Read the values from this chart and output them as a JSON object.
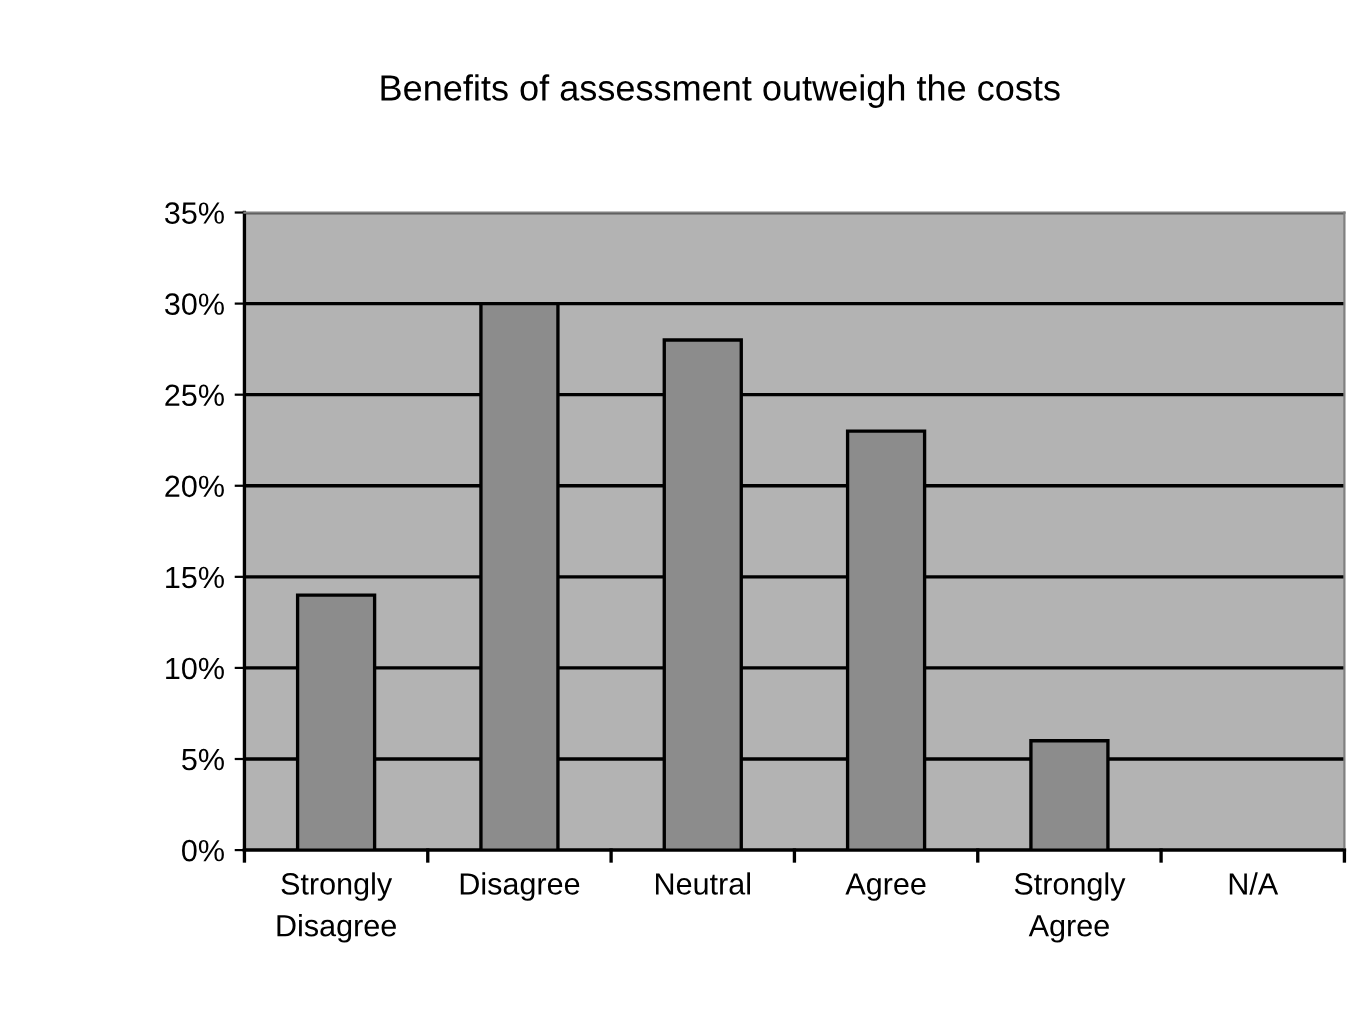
{
  "chart_data": {
    "type": "bar",
    "title": "Benefits of assessment outweigh the costs",
    "categories": [
      "Strongly\nDisagree",
      "Disagree",
      "Neutral",
      "Agree",
      "Strongly\nAgree",
      "N/A"
    ],
    "values": [
      14,
      30,
      28,
      23,
      6,
      null
    ],
    "color": "#8c8c8c",
    "ylim": [
      0,
      35
    ],
    "yticks": [
      {
        "value": 0,
        "label": "0%"
      },
      {
        "value": 5,
        "label": "5%"
      },
      {
        "value": 10,
        "label": "10%"
      },
      {
        "value": 15,
        "label": "15%"
      },
      {
        "value": 20,
        "label": "20%"
      },
      {
        "value": 25,
        "label": "25%"
      },
      {
        "value": 30,
        "label": "30%"
      },
      {
        "value": 35,
        "label": "35%"
      }
    ],
    "grid": "y"
  }
}
